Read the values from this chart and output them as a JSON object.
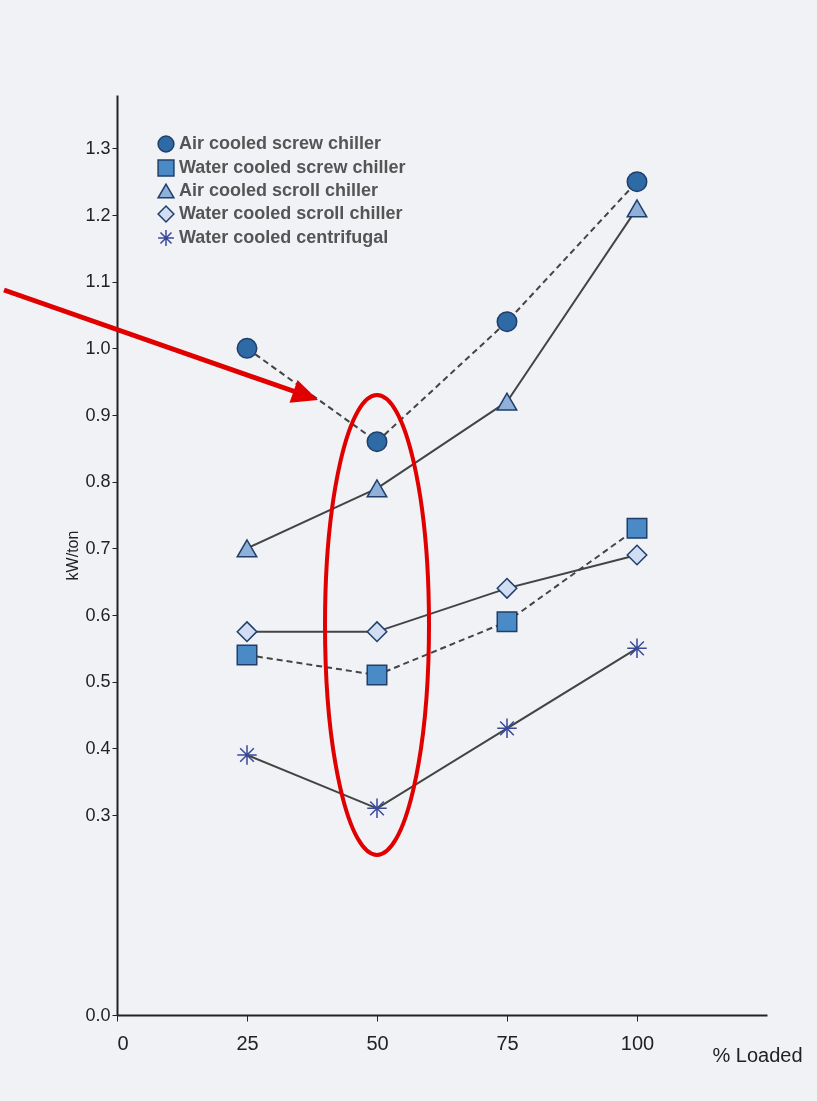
{
  "chart_data": {
    "type": "line",
    "xlabel": "% Loaded",
    "ylabel": "kW/ton",
    "x": [
      25,
      50,
      75,
      100
    ],
    "xlim": [
      0,
      125
    ],
    "xticks": [
      0,
      25,
      50,
      75,
      100
    ],
    "ylim": [
      0,
      1.38
    ],
    "yticks": [
      {
        "value": 0,
        "label": "0.0"
      },
      0.3,
      0.4,
      0.5,
      0.6,
      0.7,
      0.8,
      0.9,
      {
        "value": 1,
        "label": "1.0"
      },
      1.1,
      1.2,
      1.3
    ],
    "grid": false,
    "legend": "top left",
    "series": [
      {
        "name": "Air cooled screw chiller",
        "color": "#2e6aa6",
        "marker": "circle",
        "line_style": "dashed",
        "values": [
          1.0,
          0.86,
          1.04,
          1.25
        ]
      },
      {
        "name": "Water cooled screw chiller",
        "color": "#4a8ac6",
        "marker": "square",
        "line_style": "dashed",
        "values": [
          0.54,
          0.51,
          0.59,
          0.73
        ]
      },
      {
        "name": "Air cooled scroll chiller",
        "color": "#8fb0d8",
        "marker": "triangle",
        "line_style": "solid",
        "values": [
          0.7,
          0.79,
          0.92,
          1.21
        ]
      },
      {
        "name": "Water cooled scroll chiller",
        "color": "#d0ddf2",
        "marker": "diamond",
        "line_style": "solid",
        "values": [
          0.575,
          0.575,
          0.64,
          0.69
        ]
      },
      {
        "name": "Water cooled centrifugal",
        "color": "#3a4a9a",
        "marker": "cross",
        "line_style": "solid",
        "values": [
          0.39,
          0.31,
          0.43,
          0.55
        ]
      }
    ]
  }
}
